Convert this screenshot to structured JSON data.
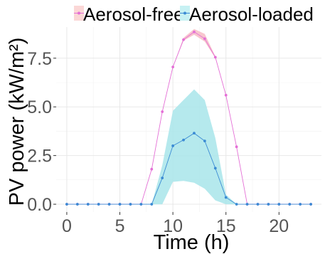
{
  "chart_data": {
    "type": "line",
    "xlabel": "Time (h)",
    "ylabel": "PV power (kW/m²)",
    "xlim": [
      -1,
      24
    ],
    "ylim": [
      -0.4,
      9.1
    ],
    "x_ticks": [
      0,
      5,
      10,
      15,
      20
    ],
    "x_tick_labels": [
      "0",
      "5",
      "10",
      "15",
      "20"
    ],
    "y_ticks": [
      0,
      2.5,
      5,
      7.5
    ],
    "y_tick_labels": [
      "0.0",
      "2.5",
      "5.0",
      "7.5"
    ],
    "grid": true,
    "legend_position": "top",
    "x": [
      0,
      1,
      2,
      3,
      4,
      5,
      6,
      7,
      8,
      9,
      10,
      11,
      12,
      13,
      14,
      15,
      16,
      17,
      18,
      19,
      20,
      21,
      22,
      23
    ],
    "series": [
      {
        "name": "Aerosol-free",
        "color": "#e46fd6",
        "band_color": "#f6b3bd",
        "values": [
          0,
          0,
          0,
          0,
          0,
          0,
          0,
          0,
          1.8,
          4.75,
          7.05,
          8.45,
          8.85,
          8.5,
          7.55,
          5.6,
          2.95,
          0,
          0,
          0,
          0,
          0,
          0,
          0
        ],
        "band_low": [
          0,
          0,
          0,
          0,
          0,
          0,
          0,
          0,
          1.8,
          4.75,
          7.05,
          8.4,
          8.7,
          8.35,
          7.5,
          5.6,
          2.95,
          0,
          0,
          0,
          0,
          0,
          0,
          0
        ],
        "band_high": [
          0,
          0,
          0,
          0,
          0,
          0,
          0,
          0,
          1.8,
          4.75,
          7.05,
          8.55,
          9.0,
          8.75,
          7.6,
          5.6,
          2.95,
          0,
          0,
          0,
          0,
          0,
          0,
          0
        ]
      },
      {
        "name": "Aerosol-loaded",
        "color": "#3b8bd4",
        "band_color": "#a8e5ea",
        "values": [
          0,
          0,
          0,
          0,
          0,
          0,
          0,
          0,
          0,
          1.35,
          3.0,
          3.3,
          3.65,
          3.25,
          1.85,
          0.35,
          0,
          0,
          0,
          0,
          0,
          0,
          0,
          0
        ],
        "band_low": [
          0,
          0,
          0,
          0,
          0,
          0,
          0,
          0,
          0,
          0,
          1.15,
          1.2,
          1.1,
          0.8,
          0.2,
          0,
          0,
          0,
          0,
          0,
          0,
          0,
          0,
          0
        ],
        "band_high": [
          0,
          0,
          0,
          0,
          0,
          0,
          0,
          0,
          0,
          2.0,
          4.8,
          5.35,
          5.9,
          5.35,
          3.4,
          0.5,
          0,
          0,
          0,
          0,
          0,
          0,
          0,
          0
        ]
      }
    ]
  }
}
